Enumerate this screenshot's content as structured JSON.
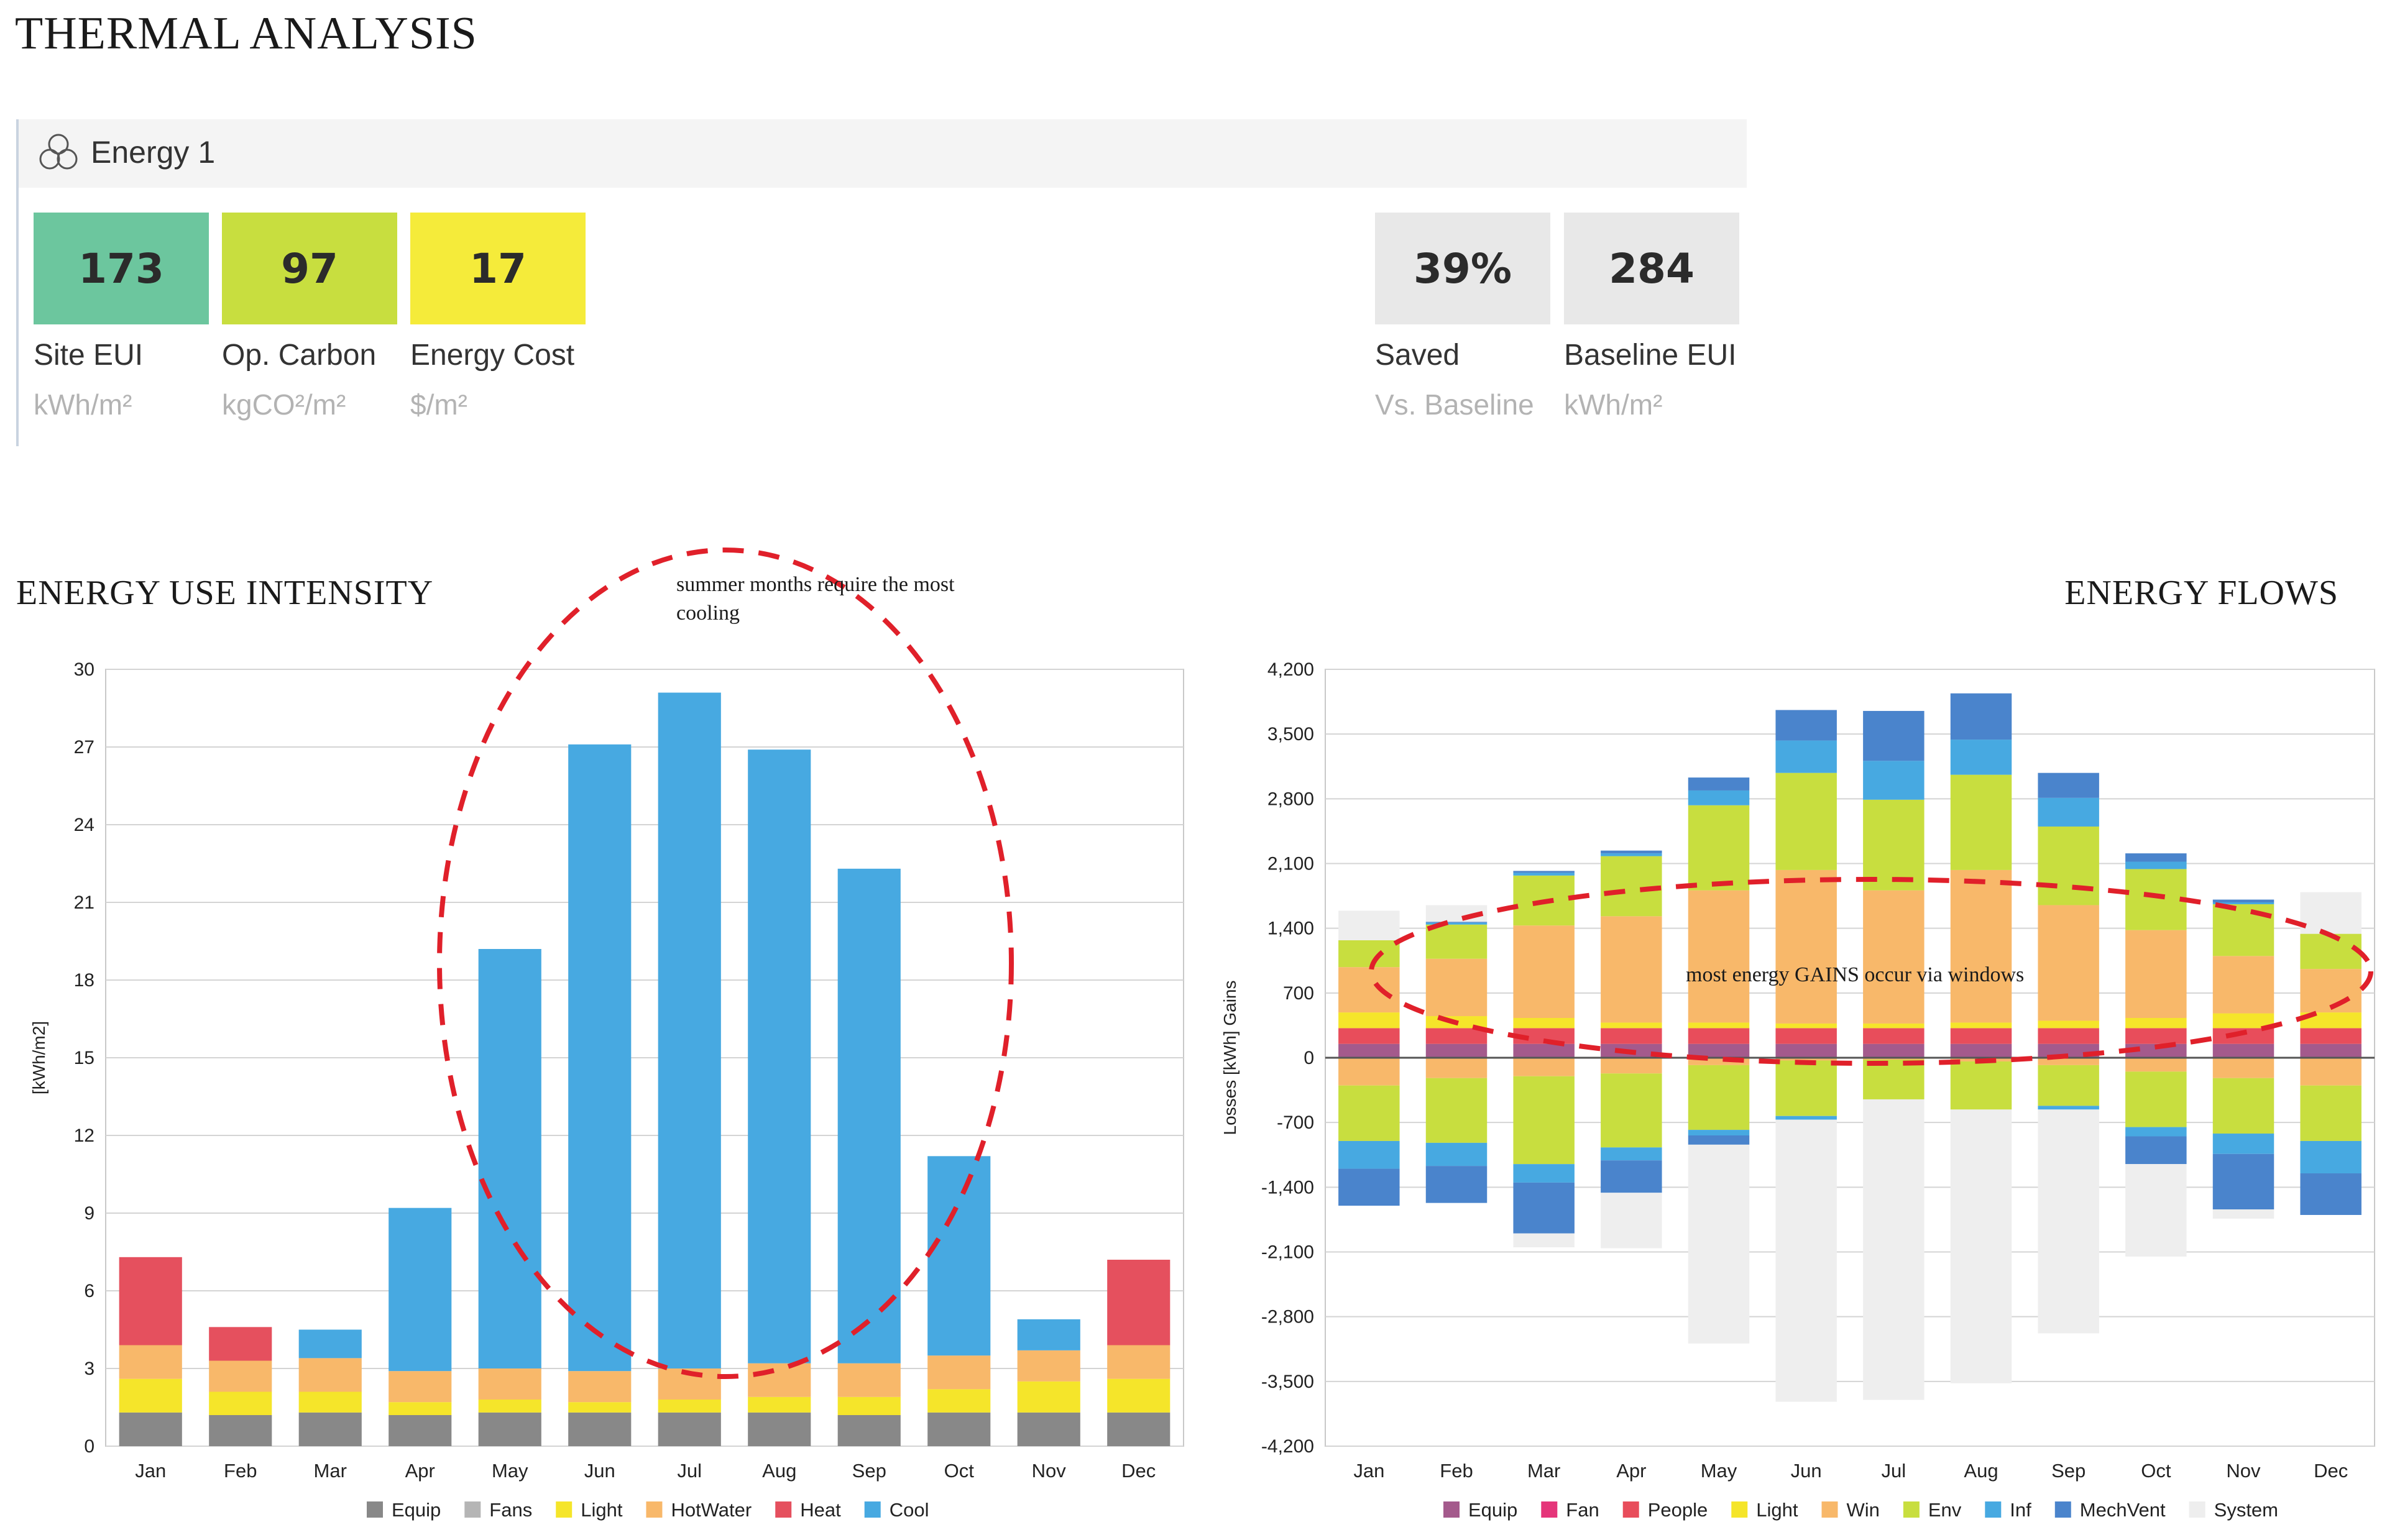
{
  "page": {
    "title": "THERMAL ANALYSIS"
  },
  "panel": {
    "title": "Energy 1",
    "icon": "three-circles-icon",
    "metrics": [
      {
        "value": "173",
        "label": "Site EUI",
        "unit": "kWh/m²",
        "color": "#6cc69e"
      },
      {
        "value": "97",
        "label": "Op. Carbon",
        "unit": "kgCO²/m²",
        "color": "#c8de3f"
      },
      {
        "value": "17",
        "label": "Energy Cost",
        "unit": "$/m²",
        "color": "#f5eb3a"
      },
      {
        "value": "39%",
        "label": "Saved",
        "unit": "Vs. Baseline",
        "color": "#e8e8e8"
      },
      {
        "value": "284",
        "label": "Baseline EUI",
        "unit": "kWh/m²",
        "color": "#e8e8e8"
      }
    ]
  },
  "eui_section": {
    "title": "ENERGY USE INTENSITY",
    "note": "summer months require the most cooling"
  },
  "flows_section": {
    "title": "ENERGY FLOWS",
    "note": "most energy GAINS occur via windows"
  },
  "chart_data": [
    {
      "type": "bar",
      "stacked": true,
      "categories": [
        "Jan",
        "Feb",
        "Mar",
        "Apr",
        "May",
        "Jun",
        "Jul",
        "Aug",
        "Sep",
        "Oct",
        "Nov",
        "Dec"
      ],
      "ylabel": "[kWh/m2]",
      "ylim": [
        0,
        30
      ],
      "yticks": [
        "0",
        "3",
        "6",
        "9",
        "12",
        "15",
        "18",
        "21",
        "24",
        "27",
        "30"
      ],
      "grid": true,
      "legend_position": "bottom",
      "series": [
        {
          "name": "Equip",
          "color": "#888888",
          "values": [
            1.3,
            1.2,
            1.3,
            1.2,
            1.3,
            1.3,
            1.3,
            1.3,
            1.2,
            1.3,
            1.3,
            1.3
          ]
        },
        {
          "name": "Fans",
          "color": "#b5b5b5",
          "values": [
            0,
            0,
            0,
            0,
            0,
            0,
            0,
            0,
            0,
            0,
            0,
            0
          ]
        },
        {
          "name": "Light",
          "color": "#f5e52a",
          "values": [
            1.3,
            0.9,
            0.8,
            0.5,
            0.5,
            0.4,
            0.5,
            0.6,
            0.7,
            0.9,
            1.2,
            1.3
          ]
        },
        {
          "name": "HotWater",
          "color": "#f8b86a",
          "values": [
            1.3,
            1.2,
            1.3,
            1.2,
            1.2,
            1.2,
            1.2,
            1.3,
            1.3,
            1.3,
            1.2,
            1.3
          ]
        },
        {
          "name": "Heat",
          "color": "#e5505e",
          "values": [
            3.4,
            1.3,
            0,
            0,
            0,
            0,
            0,
            0,
            0,
            0,
            0,
            3.3
          ]
        },
        {
          "name": "Cool",
          "color": "#47a9e1",
          "values": [
            0,
            0,
            1.1,
            6.3,
            16.2,
            24.2,
            26.1,
            23.7,
            19.1,
            7.7,
            1.2,
            0
          ]
        }
      ]
    },
    {
      "type": "bar",
      "stacked": true,
      "diverging": true,
      "categories": [
        "Jan",
        "Feb",
        "Mar",
        "Apr",
        "May",
        "Jun",
        "Jul",
        "Aug",
        "Sep",
        "Oct",
        "Nov",
        "Dec"
      ],
      "ylabel": "Losses  [kWh]  Gains",
      "ylim": [
        -4200,
        4200
      ],
      "yticks": [
        "-4,200",
        "-3,500",
        "-2,800",
        "-2,100",
        "-1,400",
        "-700",
        "0",
        "700",
        "1,400",
        "2,100",
        "2,800",
        "3,500",
        "4,200"
      ],
      "grid": true,
      "legend_position": "bottom",
      "series": [
        {
          "name": "Equip",
          "color": "#a45a8c",
          "gains": [
            150,
            150,
            150,
            150,
            150,
            150,
            150,
            150,
            150,
            150,
            150,
            150
          ],
          "losses": [
            0,
            0,
            0,
            0,
            0,
            0,
            0,
            0,
            0,
            0,
            0,
            0
          ]
        },
        {
          "name": "Fan",
          "color": "#e5357a",
          "gains": [
            0,
            0,
            0,
            0,
            0,
            0,
            0,
            0,
            0,
            0,
            0,
            0
          ],
          "losses": [
            0,
            0,
            0,
            0,
            0,
            0,
            0,
            0,
            0,
            0,
            0,
            0
          ]
        },
        {
          "name": "People",
          "color": "#e84d5b",
          "gains": [
            170,
            170,
            170,
            170,
            170,
            170,
            170,
            170,
            170,
            170,
            170,
            170
          ],
          "losses": [
            0,
            0,
            0,
            0,
            0,
            0,
            0,
            0,
            0,
            0,
            0,
            0
          ]
        },
        {
          "name": "Light",
          "color": "#f5e52a",
          "gains": [
            170,
            130,
            110,
            60,
            60,
            50,
            50,
            60,
            80,
            110,
            160,
            170
          ],
          "losses": [
            0,
            0,
            0,
            0,
            0,
            0,
            0,
            0,
            0,
            0,
            0,
            0
          ]
        },
        {
          "name": "Win",
          "color": "#f8b86a",
          "gains": [
            490,
            620,
            1000,
            1150,
            1430,
            1660,
            1440,
            1650,
            1250,
            950,
            620,
            470
          ],
          "losses": [
            -300,
            -220,
            -200,
            -170,
            -80,
            -30,
            -20,
            -40,
            -80,
            -150,
            -220,
            -300
          ]
        },
        {
          "name": "Env",
          "color": "#c8de3f",
          "gains": [
            290,
            370,
            540,
            650,
            920,
            1050,
            980,
            1030,
            850,
            660,
            560,
            380
          ],
          "losses": [
            -600,
            -700,
            -950,
            -800,
            -700,
            -600,
            -430,
            -520,
            -440,
            -600,
            -600,
            -600
          ]
        },
        {
          "name": "Inf",
          "color": "#47a9e1",
          "gains": [
            0,
            20,
            30,
            30,
            160,
            350,
            420,
            380,
            310,
            80,
            20,
            0
          ],
          "losses": [
            -300,
            -250,
            -200,
            -140,
            -60,
            -40,
            0,
            0,
            -40,
            -100,
            -220,
            -350
          ]
        },
        {
          "name": "MechVent",
          "color": "#4a84cc",
          "gains": [
            0,
            10,
            20,
            30,
            140,
            330,
            540,
            500,
            270,
            90,
            30,
            0
          ],
          "losses": [
            -400,
            -400,
            -550,
            -350,
            -100,
            0,
            0,
            0,
            0,
            -300,
            -600,
            -450
          ]
        },
        {
          "name": "System",
          "color": "#eeeeee",
          "gains": [
            320,
            180,
            0,
            0,
            0,
            0,
            0,
            0,
            0,
            0,
            0,
            450
          ],
          "losses": [
            0,
            0,
            -150,
            -600,
            -2150,
            -3050,
            -3250,
            -2960,
            -2420,
            -1000,
            -100,
            0
          ]
        }
      ]
    }
  ]
}
